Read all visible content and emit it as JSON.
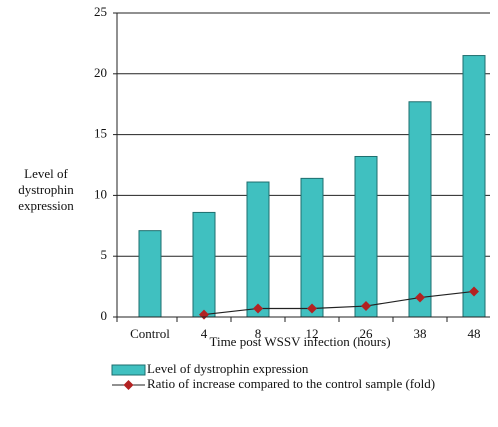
{
  "chart_data": {
    "type": "bar",
    "x_label": "Time post WSSV infection (hours)",
    "y_label": "Level of dystrophin expression",
    "categories": [
      "Control",
      "4",
      "8",
      "12",
      "26",
      "38",
      "48"
    ],
    "series": [
      {
        "name": "Level of dystrophin expression",
        "type": "bar",
        "color": "#40c0c0",
        "values": [
          7.1,
          8.6,
          11.1,
          11.4,
          13.2,
          17.7,
          21.5
        ]
      },
      {
        "name": "Ratio of increase compared to the control sample (fold)",
        "type": "line",
        "color": "#b22222",
        "values": [
          null,
          0.2,
          0.7,
          0.7,
          0.9,
          1.6,
          2.1
        ]
      }
    ],
    "ylim": [
      0,
      25
    ],
    "yticks": [
      0,
      5,
      10,
      15,
      20,
      25
    ],
    "grid": true
  }
}
